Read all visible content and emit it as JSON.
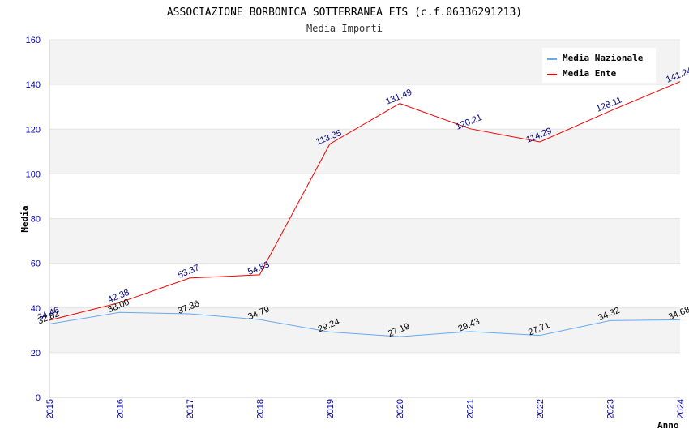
{
  "chart_data": {
    "type": "line",
    "title": "ASSOCIAZIONE BORBONICA SOTTERRANEA ETS (c.f.06336291213)",
    "subtitle": "Media Importi",
    "xlabel": "Anno",
    "ylabel": "Media",
    "ylim": [
      0,
      160
    ],
    "yticks": [
      0,
      20,
      40,
      60,
      80,
      100,
      120,
      140,
      160
    ],
    "x": [
      "2015",
      "2016",
      "2017",
      "2018",
      "2019",
      "2020",
      "2021",
      "2022",
      "2023",
      "2024"
    ],
    "grid": "horizontal alternating bands",
    "legend_position": "top-right",
    "series": [
      {
        "name": "Media Nazionale",
        "color": "#66aaee",
        "values": [
          32.82,
          38.0,
          37.36,
          34.79,
          29.24,
          27.19,
          29.43,
          27.71,
          34.32,
          34.68
        ],
        "labels": [
          "32.82",
          "38.00",
          "37.36",
          "34.79",
          "29.24",
          "27.19",
          "29.43",
          "27.71",
          "34.32",
          "34.68"
        ]
      },
      {
        "name": "Media Ente",
        "color": "#ee0000",
        "values": [
          34.46,
          42.38,
          53.37,
          54.83,
          113.35,
          131.49,
          120.21,
          114.29,
          128.11,
          141.24
        ],
        "labels": [
          "34.46",
          "42.38",
          "53.37",
          "54.83",
          "113.35",
          "131.49",
          "120.21",
          "114.29",
          "128.11",
          "141.24"
        ]
      }
    ]
  }
}
